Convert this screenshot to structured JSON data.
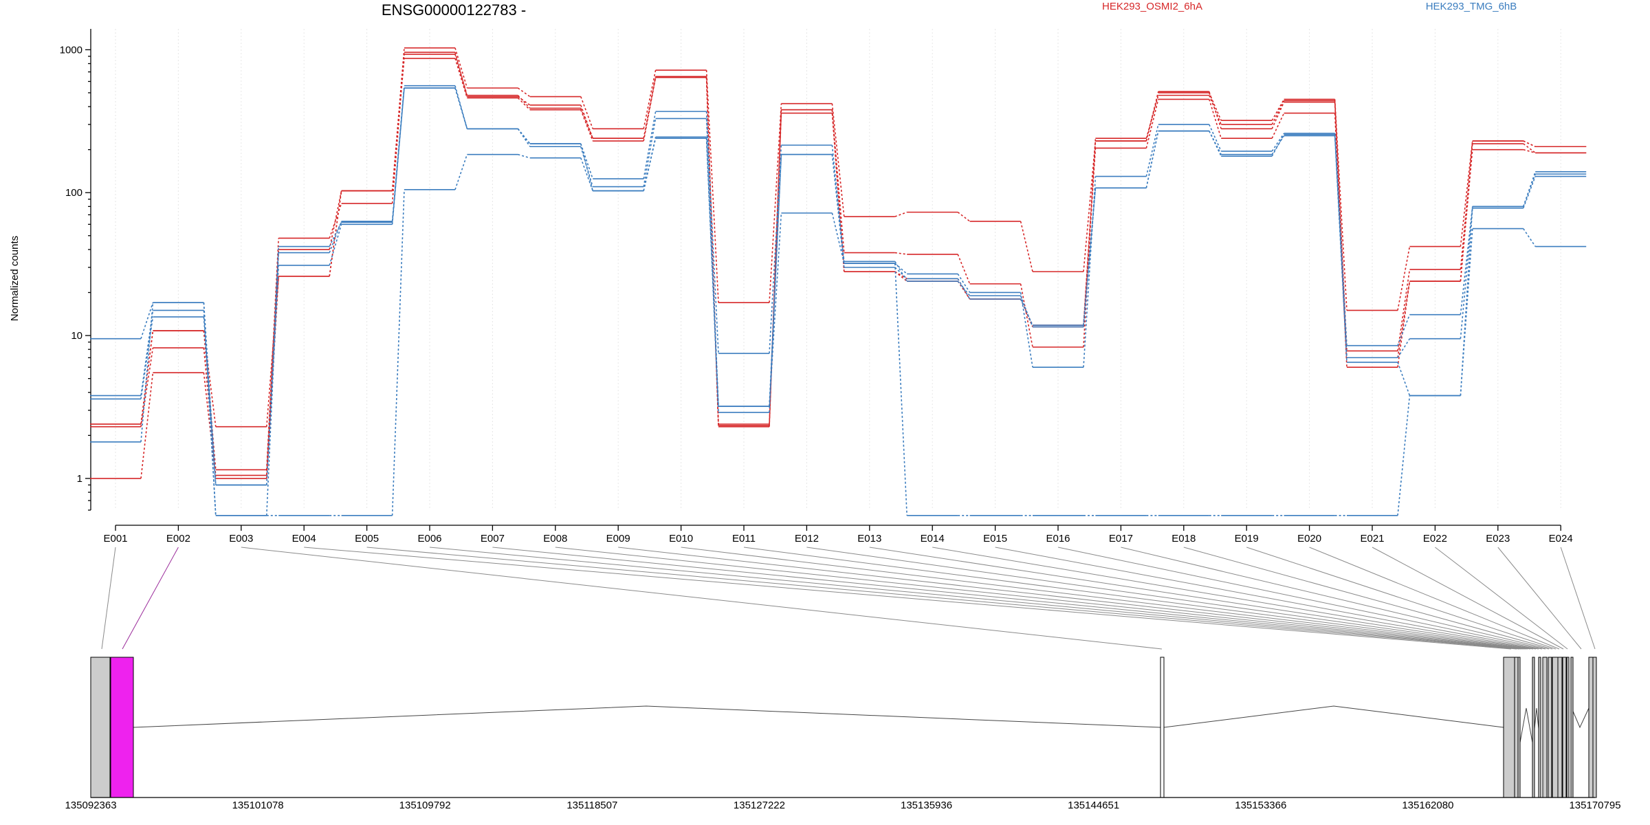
{
  "chart_data": {
    "type": "line",
    "title": "ENSG00000122783 -",
    "ylabel": "Normalized counts",
    "xlabel": "",
    "y_scale": "log",
    "ylim": [
      0.6,
      1400
    ],
    "y_ticks": [
      "1",
      "10",
      "100",
      "1000"
    ],
    "y_tick_values": [
      1,
      10,
      100,
      1000
    ],
    "grid": "faint vertical dotted lines",
    "legend_placement": "top",
    "categories": [
      "E001",
      "E002",
      "E003",
      "E004",
      "E005",
      "E006",
      "E007",
      "E008",
      "E009",
      "E010",
      "E011",
      "E012",
      "E013",
      "E014",
      "E015",
      "E016",
      "E017",
      "E018",
      "E019",
      "E020",
      "E021",
      "E022",
      "E023",
      "E024"
    ],
    "groups": [
      {
        "name": "HEK293_OSMI2_6hA",
        "color": "#d62728"
      },
      {
        "name": "HEK293_TMG_6hB",
        "color": "#3b7dbf"
      }
    ],
    "series": [
      {
        "group": 0,
        "values": [
          1.0,
          5.5,
          1.0,
          26,
          103,
          1030,
          540,
          470,
          280,
          720,
          17,
          420,
          68,
          73,
          63,
          28,
          230,
          500,
          320,
          450,
          15,
          42,
          230,
          210
        ]
      },
      {
        "group": 0,
        "values": [
          2.3,
          8.2,
          1.05,
          40,
          103,
          960,
          470,
          410,
          240,
          650,
          2.35,
          380,
          38,
          37,
          23,
          8.3,
          240,
          480,
          300,
          440,
          7.8,
          29,
          220,
          190
        ]
      },
      {
        "group": 0,
        "values": [
          2.4,
          10.8,
          1.15,
          48,
          84,
          930,
          480,
          390,
          240,
          640,
          2.3,
          360,
          28,
          24,
          18,
          11.5,
          205,
          450,
          240,
          360,
          6.0,
          24,
          200,
          190
        ]
      },
      {
        "group": 0,
        "values": [
          2.4,
          10.8,
          2.3,
          26,
          103,
          870,
          460,
          380,
          230,
          640,
          2.4,
          380,
          28,
          25,
          18,
          11.8,
          230,
          510,
          280,
          430,
          7.0,
          24,
          230,
          210
        ]
      },
      {
        "group": 1,
        "values": [
          9.5,
          17,
          0.9,
          31,
          60,
          540,
          280,
          220,
          125,
          370,
          7.5,
          215,
          32,
          27,
          20,
          6.0,
          130,
          300,
          195,
          260,
          8.5,
          14,
          80,
          135
        ]
      },
      {
        "group": 1,
        "values": [
          3.8,
          15,
          0.55,
          38,
          63,
          560,
          280,
          210,
          110,
          330,
          3.2,
          185,
          30,
          25,
          18,
          11.8,
          108,
          270,
          180,
          255,
          7.0,
          9.5,
          78,
          130
        ]
      },
      {
        "group": 1,
        "values": [
          3.6,
          13.5,
          0.9,
          42,
          62,
          540,
          280,
          220,
          103,
          245,
          2.9,
          185,
          33,
          24,
          19,
          11.5,
          108,
          270,
          185,
          250,
          6.5,
          3.8,
          80,
          140
        ]
      },
      {
        "group": 1,
        "values": [
          1.8,
          17,
          0.55,
          0.55,
          0.55,
          105,
          185,
          175,
          103,
          240,
          3.2,
          72,
          32,
          0.55,
          0.55,
          0.55,
          0.55,
          0.55,
          0.55,
          0.55,
          0.55,
          3.8,
          56,
          42
        ]
      }
    ],
    "gene_model": {
      "x_tick_labels": [
        "135092363",
        "135101078",
        "135109792",
        "135118507",
        "135127222",
        "135135936",
        "135144651",
        "135153366",
        "135162080",
        "135170795"
      ],
      "x_tick_values": [
        135092363,
        135101078,
        135109792,
        135118507,
        135127222,
        135135936,
        135144651,
        135153366,
        135162080,
        135170795
      ],
      "highlighted_exon": "E002",
      "exon_color": "#cccccc",
      "highlight_color": "#ee22ee"
    }
  }
}
